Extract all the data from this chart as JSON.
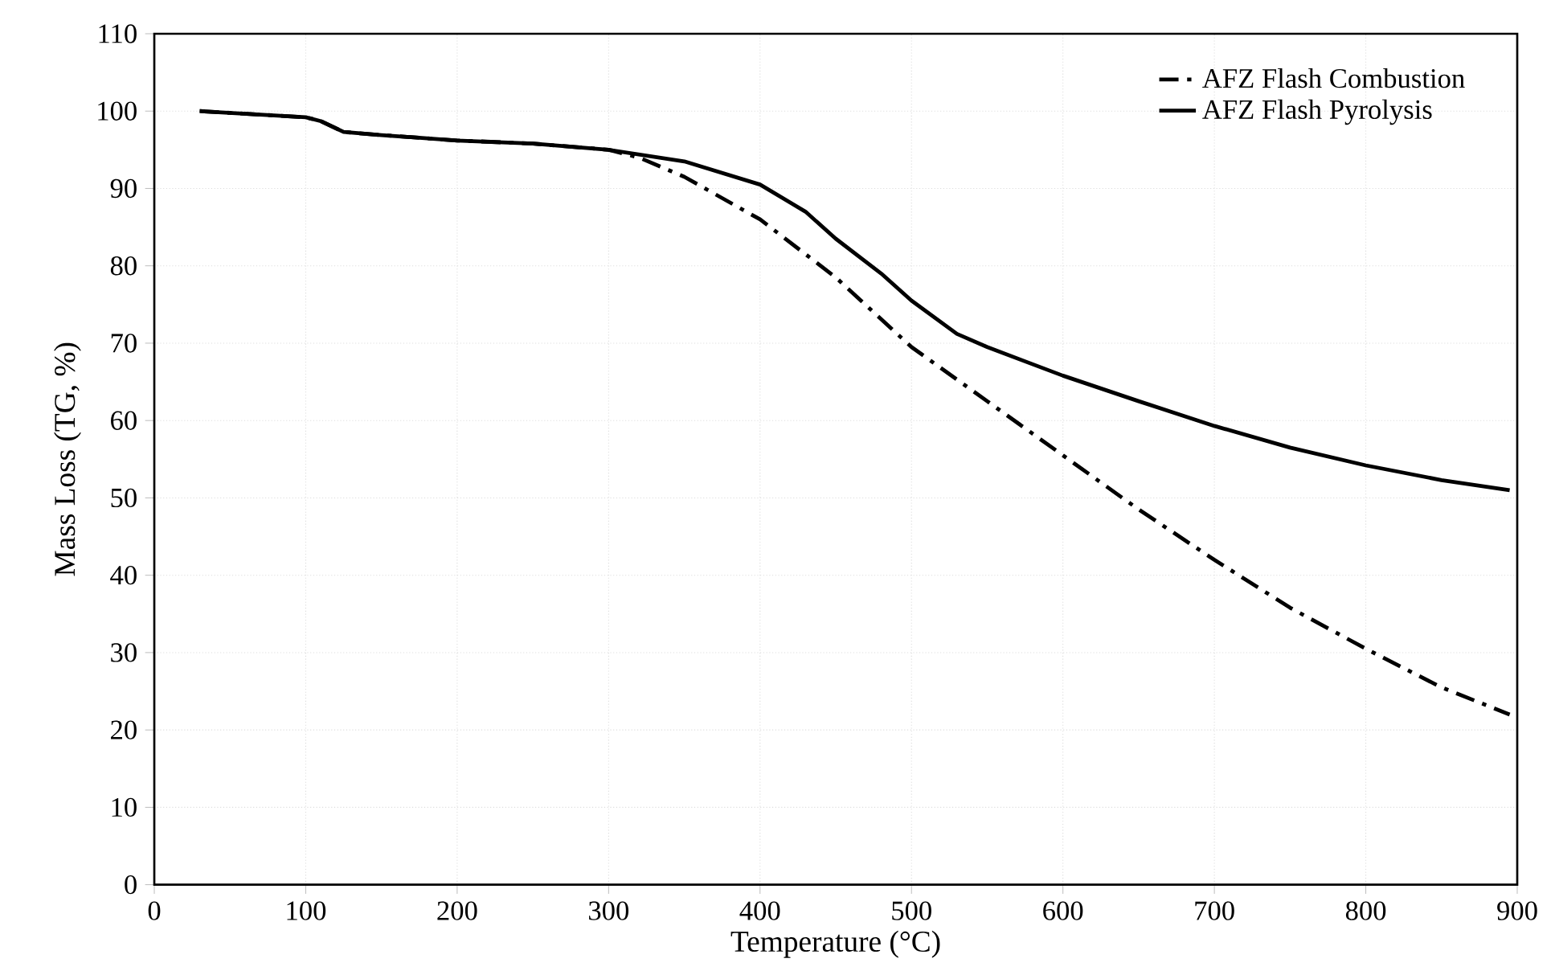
{
  "chart_data": {
    "type": "line",
    "xlabel": "Temperature (°C)",
    "ylabel": "Mass  Loss (TG, %)",
    "xlim": [
      0,
      900
    ],
    "ylim": [
      0,
      110
    ],
    "xticks": [
      0,
      100,
      200,
      300,
      400,
      500,
      600,
      700,
      800,
      900
    ],
    "yticks": [
      0,
      10,
      20,
      30,
      40,
      50,
      60,
      70,
      80,
      90,
      100,
      110
    ],
    "grid": true,
    "legend": "top right",
    "marker": "none",
    "series": [
      {
        "name": "AFZ Flash Combustion",
        "color": "#000000",
        "line_style": "dashdot",
        "x": [
          30,
          100,
          110,
          125,
          150,
          200,
          250,
          300,
          320,
          350,
          400,
          450,
          500,
          550,
          600,
          650,
          700,
          750,
          800,
          850,
          895
        ],
        "values": [
          100,
          99.2,
          98.7,
          97.3,
          96.9,
          96.2,
          95.8,
          95,
          94,
          91.5,
          86,
          78.5,
          69.5,
          62.5,
          55.5,
          48.5,
          42,
          35.8,
          30.5,
          25.5,
          22
        ]
      },
      {
        "name": "AFZ Flash Pyrolysis",
        "color": "#000000",
        "line_style": "solid",
        "x": [
          30,
          100,
          110,
          125,
          150,
          200,
          250,
          300,
          350,
          400,
          430,
          450,
          480,
          500,
          530,
          550,
          600,
          650,
          700,
          750,
          800,
          850,
          895
        ],
        "values": [
          100,
          99.2,
          98.7,
          97.3,
          96.9,
          96.2,
          95.8,
          95,
          93.5,
          90.5,
          87,
          83.5,
          79,
          75.5,
          71.2,
          69.5,
          65.8,
          62.5,
          59.3,
          56.5,
          54.2,
          52.3,
          51
        ]
      }
    ]
  }
}
